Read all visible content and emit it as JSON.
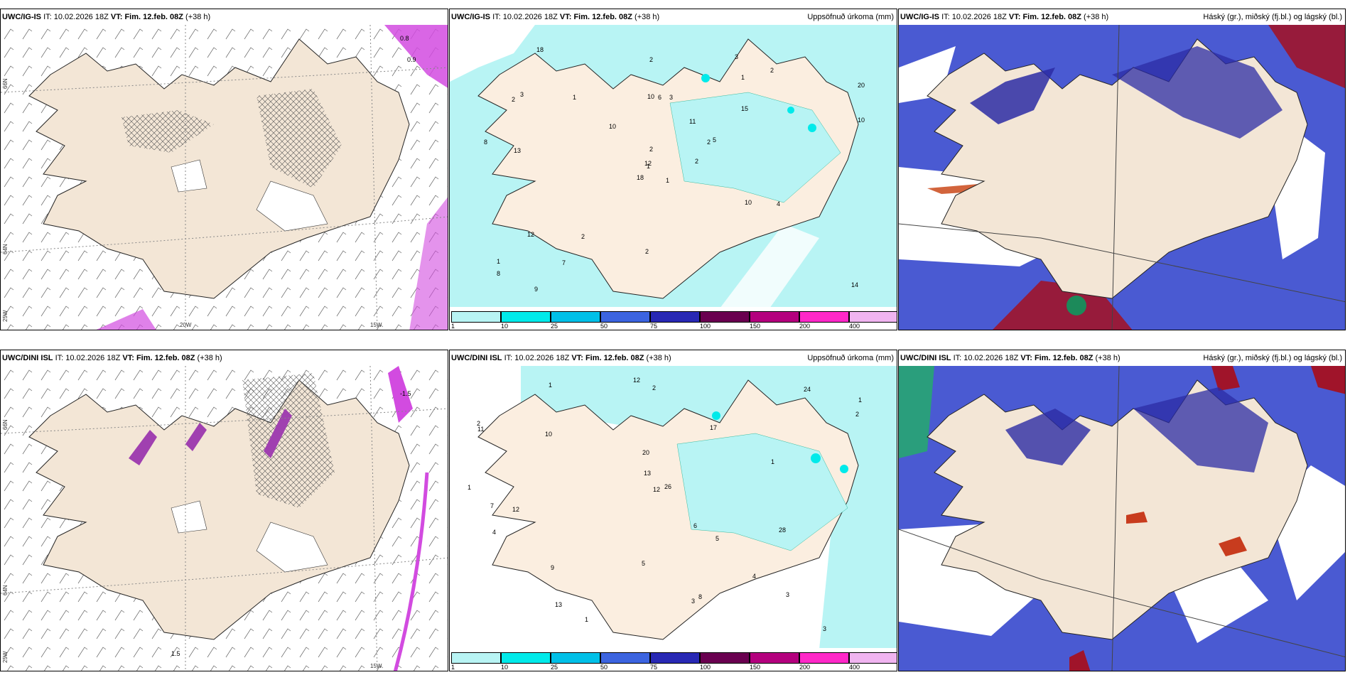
{
  "rows": [
    {
      "model": "UWC/IG-IS",
      "panels": [
        {
          "type": "wind",
          "title": ""
        },
        {
          "type": "precip",
          "title": "Uppsöfnuð úrkoma (mm)"
        },
        {
          "type": "cloud",
          "title": "Háský (gr.), miðský (fj.bl.) og lágský (bl.)"
        }
      ],
      "wind_values": [
        "0.8",
        "0.9"
      ],
      "precip_labels": [
        "1",
        "2",
        "1",
        "1",
        "2",
        "2",
        "3",
        "3",
        "1",
        "2",
        "18",
        "14",
        "13",
        "20",
        "18",
        "15",
        "9",
        "10",
        "11",
        "12",
        "10",
        "8",
        "7",
        "6",
        "5",
        "4",
        "3",
        "2",
        "8",
        "10",
        "10",
        "12",
        "2",
        "2",
        "1",
        "2"
      ]
    },
    {
      "model": "UWC/DINI ISL",
      "panels": [
        {
          "type": "wind",
          "title": ""
        },
        {
          "type": "precip",
          "title": "Uppsöfnuð úrkoma (mm)"
        },
        {
          "type": "cloud",
          "title": "Háský (gr.), miðský (fj.bl.) og lágský (bl.)"
        }
      ],
      "wind_values": [
        "-1.5",
        "1.5"
      ],
      "precip_labels": [
        "1",
        "2",
        "1",
        "1",
        "2",
        "3",
        "12",
        "17",
        "20",
        "24",
        "26",
        "28",
        "12",
        "11",
        "10",
        "9",
        "8",
        "7",
        "6",
        "5",
        "4",
        "3",
        "2",
        "13",
        "13",
        "12",
        "5",
        "1",
        "1",
        "3",
        "4"
      ]
    }
  ],
  "header": {
    "it_label": "IT:",
    "it_value": "10.02.2026 18Z",
    "vt_label": "VT:",
    "vt_value": "Fim. 12.feb. 08Z",
    "lead": "(+38 h)"
  },
  "axis_ticks": {
    "lat_66": "66N",
    "lat_64": "64N",
    "lon_25": "25W",
    "lon_20": "20W",
    "lon_15": "15W"
  },
  "legend": {
    "labels": [
      "1",
      "10",
      "25",
      "50",
      "75",
      "100",
      "150",
      "200",
      "400"
    ],
    "colors": [
      "#b8f4f4",
      "#00eaea",
      "#00c0e8",
      "#3c64e0",
      "#2828b4",
      "#6a0050",
      "#b4007e",
      "#ff28c8",
      "#f0b4f0"
    ]
  },
  "colors": {
    "land": "#f3e6d6",
    "precip_light": "#b8f4f4",
    "precip_mid": "#00eaea",
    "cloud_high": "#3c3cb4",
    "cloud_mid": "#5a7ce6",
    "cloud_low": "#a0142a",
    "wind_shade": "#d24be0"
  }
}
